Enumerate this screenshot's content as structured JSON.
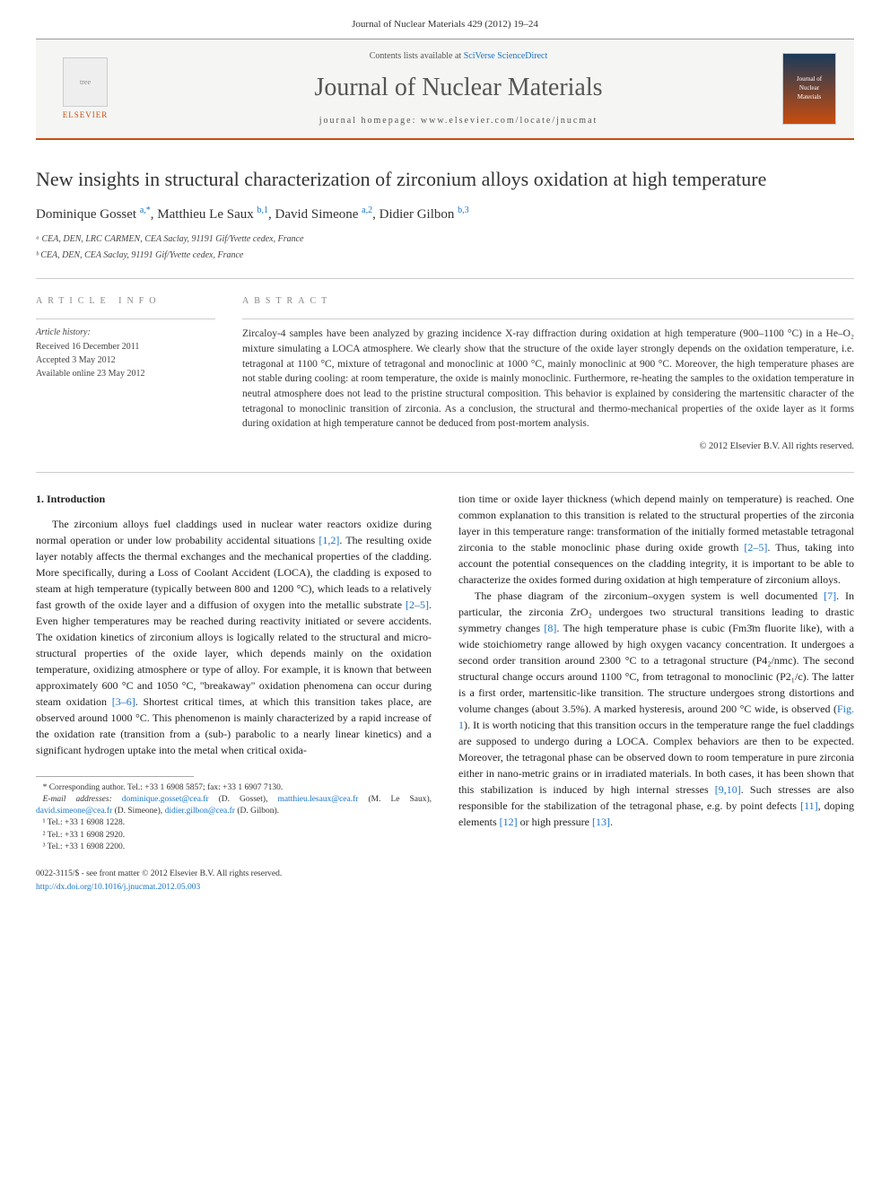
{
  "header": {
    "top_citation": "Journal of Nuclear Materials 429 (2012) 19–24",
    "contents_label": "Contents lists available at",
    "contents_link": "SciVerse ScienceDirect",
    "journal_name": "Journal of Nuclear Materials",
    "homepage_label": "journal homepage:",
    "homepage_url": "www.elsevier.com/locate/jnucmat",
    "elsevier_label": "ELSEVIER",
    "thumb_text": "Journal of Nuclear Materials"
  },
  "article": {
    "title": "New insights in structural characterization of zirconium alloys oxidation at high temperature",
    "authors_html": "Dominique Gosset <sup>a,*</sup>, Matthieu Le Saux <sup>b,1</sup>, David Simeone <sup>a,2</sup>, Didier Gilbon <sup>b,3</sup>",
    "affiliations": [
      "ᵃ CEA, DEN, LRC CARMEN, CEA Saclay, 91191 Gif/Yvette cedex, France",
      "ᵇ CEA, DEN, CEA Saclay, 91191 Gif/Yvette cedex, France"
    ]
  },
  "info": {
    "heading": "ARTICLE INFO",
    "history_label": "Article history:",
    "history": [
      "Received 16 December 2011",
      "Accepted 3 May 2012",
      "Available online 23 May 2012"
    ]
  },
  "abstract": {
    "heading": "ABSTRACT",
    "text": "Zircaloy-4 samples have been analyzed by grazing incidence X-ray diffraction during oxidation at high temperature (900–1100 °C) in a He–O₂ mixture simulating a LOCA atmosphere. We clearly show that the structure of the oxide layer strongly depends on the oxidation temperature, i.e. tetragonal at 1100 °C, mixture of tetragonal and monoclinic at 1000 °C, mainly monoclinic at 900 °C. Moreover, the high temperature phases are not stable during cooling: at room temperature, the oxide is mainly monoclinic. Furthermore, re-heating the samples to the oxidation temperature in neutral atmosphere does not lead to the pristine structural composition. This behavior is explained by considering the martensitic character of the tetragonal to monoclinic transition of zirconia. As a conclusion, the structural and thermo-mechanical properties of the oxide layer as it forms during oxidation at high temperature cannot be deduced from post-mortem analysis.",
    "copyright": "© 2012 Elsevier B.V. All rights reserved."
  },
  "body": {
    "section_number": "1.",
    "section_title": "Introduction",
    "col1_p1": "The zirconium alloys fuel claddings used in nuclear water reactors oxidize during normal operation or under low probability accidental situations [1,2]. The resulting oxide layer notably affects the thermal exchanges and the mechanical properties of the cladding. More specifically, during a Loss of Coolant Accident (LOCA), the cladding is exposed to steam at high temperature (typically between 800 and 1200 °C), which leads to a relatively fast growth of the oxide layer and a diffusion of oxygen into the metallic substrate [2–5]. Even higher temperatures may be reached during reactivity initiated or severe accidents. The oxidation kinetics of zirconium alloys is logically related to the structural and micro-structural properties of the oxide layer, which depends mainly on the oxidation temperature, oxidizing atmosphere or type of alloy. For example, it is known that between approximately 600 °C and 1050 °C, \"breakaway\" oxidation phenomena can occur during steam oxidation [3–6]. Shortest critical times, at which this transition takes place, are observed around 1000 °C. This phenomenon is mainly characterized by a rapid increase of the oxidation rate (transition from a (sub-) parabolic to a nearly linear kinetics) and a significant hydrogen uptake into the metal when critical oxida-",
    "col2_p1": "tion time or oxide layer thickness (which depend mainly on temperature) is reached. One common explanation to this transition is related to the structural properties of the zirconia layer in this temperature range: transformation of the initially formed metastable tetragonal zirconia to the stable monoclinic phase during oxide growth [2–5]. Thus, taking into account the potential consequences on the cladding integrity, it is important to be able to characterize the oxides formed during oxidation at high temperature of zirconium alloys.",
    "col2_p2": "The phase diagram of the zirconium–oxygen system is well documented [7]. In particular, the zirconia ZrO₂ undergoes two structural transitions leading to drastic symmetry changes [8]. The high temperature phase is cubic (Fm3̄m fluorite like), with a wide stoichiometry range allowed by high oxygen vacancy concentration. It undergoes a second order transition around 2300 °C to a tetragonal structure (P4₂/nmc). The second structural change occurs around 1100 °C, from tetragonal to monoclinic (P2₁/c). The latter is a first order, martensitic-like transition. The structure undergoes strong distortions and volume changes (about 3.5%). A marked hysteresis, around 200 °C wide, is observed (Fig. 1). It is worth noticing that this transition occurs in the temperature range the fuel claddings are supposed to undergo during a LOCA. Complex behaviors are then to be expected. Moreover, the tetragonal phase can be observed down to room temperature in pure zirconia either in nano-metric grains or in irradiated materials. In both cases, it has been shown that this stabilization is induced by high internal stresses [9,10]. Such stresses are also responsible for the stabilization of the tetragonal phase, e.g. by point defects [11], doping elements [12] or high pressure [13]."
  },
  "footnotes": {
    "corresponding": "* Corresponding author. Tel.: +33 1 6908 5857; fax: +33 1 6907 7130.",
    "emails_label": "E-mail addresses:",
    "emails": "dominique.gosset@cea.fr (D. Gosset), matthieu.lesaux@cea.fr (M. Le Saux), david.simeone@cea.fr (D. Simeone), didier.gilbon@cea.fr (D. Gilbon).",
    "tel1": "¹ Tel.: +33 1 6908 1228.",
    "tel2": "² Tel.: +33 1 6908 2920.",
    "tel3": "³ Tel.: +33 1 6908 2200."
  },
  "doi": {
    "line1": "0022-3115/$ - see front matter © 2012 Elsevier B.V. All rights reserved.",
    "line2_label": "http://dx.doi.org/",
    "line2_doi": "10.1016/j.jnucmat.2012.05.003"
  },
  "colors": {
    "accent": "#c84d0f",
    "link": "#1a73c8",
    "text": "#222222",
    "muted": "#888888"
  }
}
